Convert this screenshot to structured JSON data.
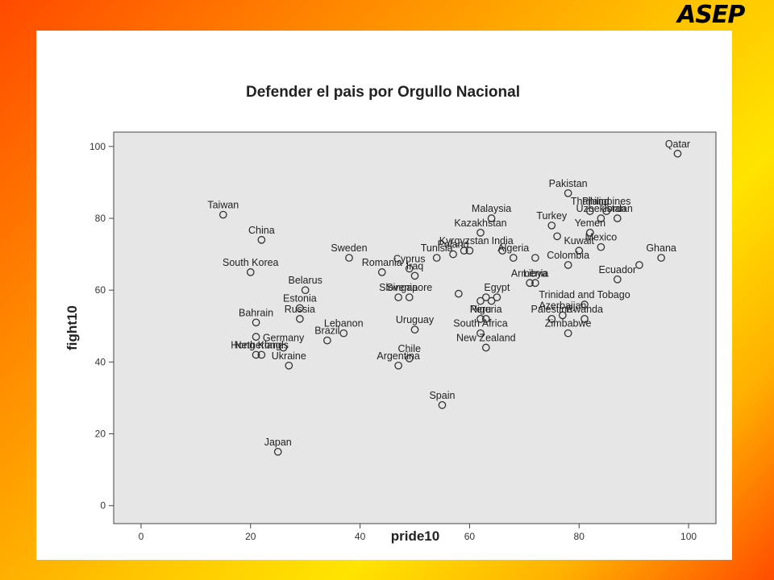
{
  "logo": "ASEP",
  "chart_data": {
    "type": "scatter",
    "title": "Defender el pais por Orgullo Nacional",
    "xlabel": "pride10",
    "ylabel": "fight10",
    "xlim": [
      -5,
      105
    ],
    "ylim": [
      -5,
      104
    ],
    "xticks": [
      0,
      20,
      40,
      60,
      80,
      100
    ],
    "yticks": [
      0,
      20,
      40,
      60,
      80,
      100
    ],
    "grid": false,
    "plot_background": "#e6e6e6",
    "marker_color": "#333333",
    "points": [
      {
        "label": "Qatar",
        "x": 98,
        "y": 98
      },
      {
        "label": "Pakistan",
        "x": 78,
        "y": 87
      },
      {
        "label": "Philippines",
        "x": 85,
        "y": 82
      },
      {
        "label": "Thailand",
        "x": 82,
        "y": 82
      },
      {
        "label": "Jordan",
        "x": 87,
        "y": 80
      },
      {
        "label": "Uzbekistan",
        "x": 84,
        "y": 80
      },
      {
        "label": "Malaysia",
        "x": 64,
        "y": 80
      },
      {
        "label": "Kazakhstan",
        "x": 62,
        "y": 76
      },
      {
        "label": "Turkey",
        "x": 75,
        "y": 78
      },
      {
        "label": "Yemen",
        "x": 82,
        "y": 76
      },
      {
        "label": "",
        "x": 76,
        "y": 75
      },
      {
        "label": "Taiwan",
        "x": 15,
        "y": 81
      },
      {
        "label": "China",
        "x": 22,
        "y": 74
      },
      {
        "label": "Ghana",
        "x": 95,
        "y": 69
      },
      {
        "label": "Mexico",
        "x": 84,
        "y": 72
      },
      {
        "label": "Kuwait",
        "x": 80,
        "y": 71
      },
      {
        "label": "India",
        "x": 66,
        "y": 71
      },
      {
        "label": "Kyrgyzstan",
        "x": 59,
        "y": 71
      },
      {
        "label": "Poland",
        "x": 57,
        "y": 70
      },
      {
        "label": "",
        "x": 60,
        "y": 71
      },
      {
        "label": "Algeria",
        "x": 68,
        "y": 69
      },
      {
        "label": "Colombia",
        "x": 78,
        "y": 67
      },
      {
        "label": "",
        "x": 72,
        "y": 69
      },
      {
        "label": "",
        "x": 91,
        "y": 67
      },
      {
        "label": "Ecuador",
        "x": 87,
        "y": 63
      },
      {
        "label": "Armenia",
        "x": 71,
        "y": 62
      },
      {
        "label": "Libya",
        "x": 72,
        "y": 62
      },
      {
        "label": "South Korea",
        "x": 20,
        "y": 65
      },
      {
        "label": "Sweden",
        "x": 38,
        "y": 69
      },
      {
        "label": "Cyprus",
        "x": 49,
        "y": 66
      },
      {
        "label": "Tunisia",
        "x": 54,
        "y": 69
      },
      {
        "label": "Romania",
        "x": 44,
        "y": 65
      },
      {
        "label": "Iraq",
        "x": 50,
        "y": 64
      },
      {
        "label": "Belarus",
        "x": 30,
        "y": 60
      },
      {
        "label": "Egypt",
        "x": 65,
        "y": 58
      },
      {
        "label": "",
        "x": 62,
        "y": 57
      },
      {
        "label": "",
        "x": 63,
        "y": 58
      },
      {
        "label": "",
        "x": 64,
        "y": 57
      },
      {
        "label": "",
        "x": 58,
        "y": 59
      },
      {
        "label": "Trinidad and Tobago",
        "x": 81,
        "y": 56
      },
      {
        "label": "Azerbaijan",
        "x": 77,
        "y": 53
      },
      {
        "label": "Slovenia",
        "x": 47,
        "y": 58
      },
      {
        "label": "Singapore",
        "x": 49,
        "y": 58
      },
      {
        "label": "Peru",
        "x": 62,
        "y": 52
      },
      {
        "label": "Nigeria",
        "x": 63,
        "y": 52
      },
      {
        "label": "Palestine",
        "x": 75,
        "y": 52
      },
      {
        "label": "Rwanda",
        "x": 81,
        "y": 52
      },
      {
        "label": "Estonia",
        "x": 29,
        "y": 55
      },
      {
        "label": "Russia",
        "x": 29,
        "y": 52
      },
      {
        "label": "Bahrain",
        "x": 21,
        "y": 51
      },
      {
        "label": "",
        "x": 21,
        "y": 47
      },
      {
        "label": "Germany",
        "x": 26,
        "y": 44
      },
      {
        "label": "Lebanon",
        "x": 37,
        "y": 48
      },
      {
        "label": "Brazil",
        "x": 34,
        "y": 46
      },
      {
        "label": "Uruguay",
        "x": 50,
        "y": 49
      },
      {
        "label": "South Africa",
        "x": 62,
        "y": 48
      },
      {
        "label": "Zimbabwe",
        "x": 78,
        "y": 48
      },
      {
        "label": "Chile",
        "x": 49,
        "y": 41
      },
      {
        "label": "New Zealand",
        "x": 63,
        "y": 44
      },
      {
        "label": "Hong Kong",
        "x": 21,
        "y": 42
      },
      {
        "label": "Netherlands",
        "x": 22,
        "y": 42
      },
      {
        "label": "Ukraine",
        "x": 27,
        "y": 39
      },
      {
        "label": "Argentina",
        "x": 47,
        "y": 39
      },
      {
        "label": "Spain",
        "x": 55,
        "y": 28
      },
      {
        "label": "Japan",
        "x": 25,
        "y": 15
      }
    ]
  }
}
